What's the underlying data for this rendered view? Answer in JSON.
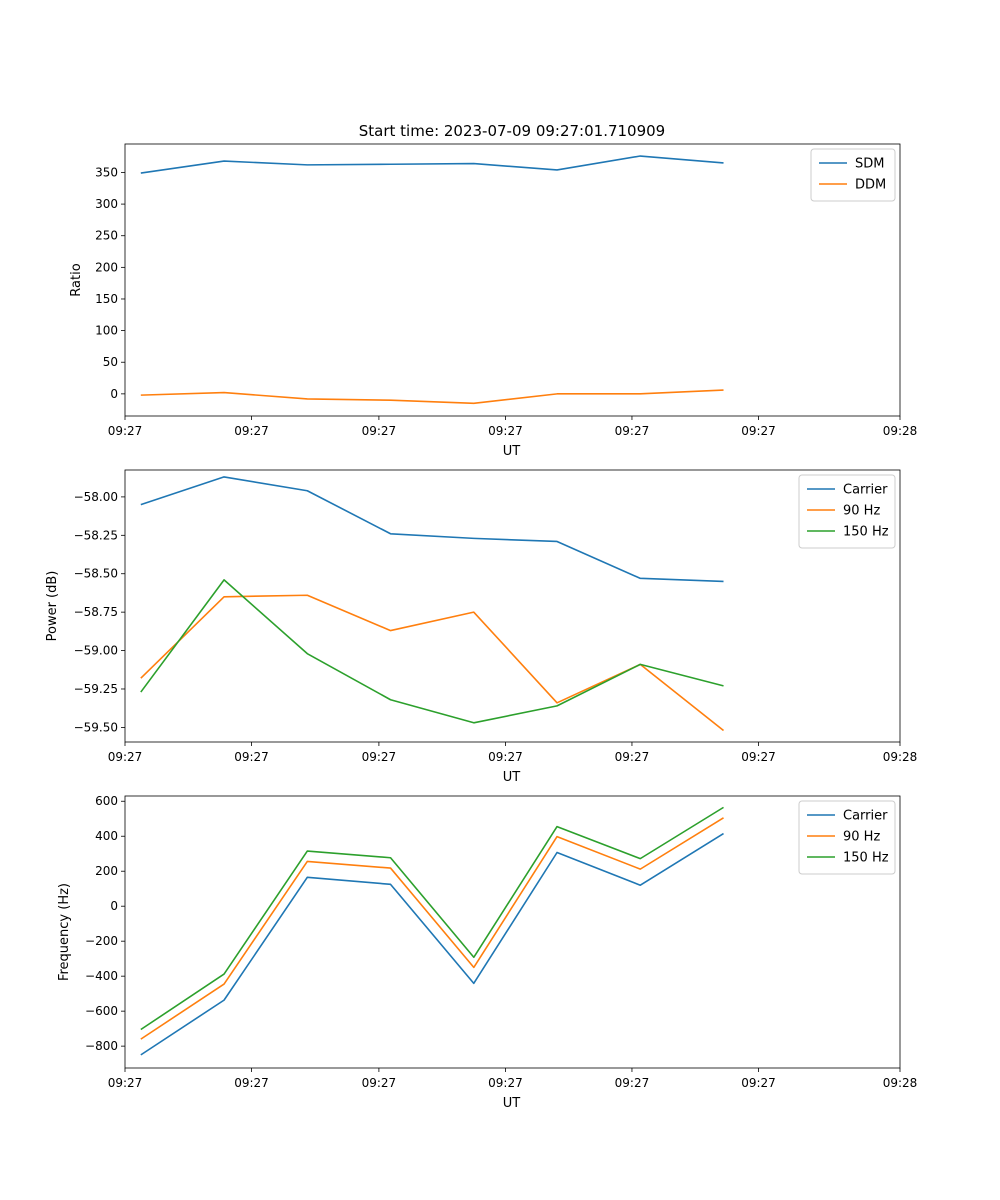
{
  "figure": {
    "title": "Start time: 2023-07-09 09:27:01.710909",
    "colors": {
      "blue": "#1f77b4",
      "orange": "#ff7f0e",
      "green": "#2ca02c",
      "axis": "#000000"
    }
  },
  "chart_data": [
    {
      "type": "line",
      "name": "ratio",
      "title": "Start time: 2023-07-09 09:27:01.710909",
      "xlabel": "UT",
      "ylabel": "Ratio",
      "x": [
        1,
        2,
        3,
        4,
        5,
        6,
        7,
        8
      ],
      "xlim": [
        0.81,
        10.12
      ],
      "xticks": [
        0.81,
        2.33,
        3.86,
        5.38,
        6.9,
        8.42,
        10.12
      ],
      "xtick_labels": [
        "09:27",
        "09:27",
        "09:27",
        "09:27",
        "09:27",
        "09:27",
        "09:28"
      ],
      "ylim": [
        -35,
        395
      ],
      "yticks": [
        0,
        50,
        100,
        150,
        200,
        250,
        300,
        350
      ],
      "ytick_labels": [
        "0",
        "50",
        "100",
        "150",
        "200",
        "250",
        "300",
        "350"
      ],
      "legend_position": "top-right",
      "series": [
        {
          "name": "SDM",
          "color": "#1f77b4",
          "values": [
            349,
            368,
            362,
            363,
            364,
            354,
            376,
            365
          ]
        },
        {
          "name": "DDM",
          "color": "#ff7f0e",
          "values": [
            -2,
            2,
            -8,
            -10,
            -15,
            0,
            0,
            6
          ]
        }
      ]
    },
    {
      "type": "line",
      "name": "power",
      "xlabel": "UT",
      "ylabel": "Power (dB)",
      "x": [
        1,
        2,
        3,
        4,
        5,
        6,
        7,
        8
      ],
      "xlim": [
        0.81,
        10.12
      ],
      "xticks": [
        0.81,
        2.33,
        3.86,
        5.38,
        6.9,
        8.42,
        10.12
      ],
      "xtick_labels": [
        "09:27",
        "09:27",
        "09:27",
        "09:27",
        "09:27",
        "09:27",
        "09:28"
      ],
      "ylim": [
        -59.595,
        -57.825
      ],
      "yticks": [
        -58.0,
        -58.25,
        -58.5,
        -58.75,
        -59.0,
        -59.25,
        -59.5
      ],
      "ytick_labels": [
        "−58.00",
        "−58.25",
        "−58.50",
        "−58.75",
        "−59.00",
        "−59.25",
        "−59.50"
      ],
      "legend_position": "top-right",
      "series": [
        {
          "name": "Carrier",
          "color": "#1f77b4",
          "values": [
            -58.05,
            -57.87,
            -57.96,
            -58.24,
            -58.27,
            -58.29,
            -58.53,
            -58.55
          ]
        },
        {
          "name": "90 Hz",
          "color": "#ff7f0e",
          "values": [
            -59.18,
            -58.65,
            -58.64,
            -58.87,
            -58.75,
            -59.34,
            -59.09,
            -59.52
          ]
        },
        {
          "name": "150 Hz",
          "color": "#2ca02c",
          "values": [
            -59.27,
            -58.54,
            -59.02,
            -59.32,
            -59.47,
            -59.36,
            -59.09,
            -59.23
          ]
        }
      ]
    },
    {
      "type": "line",
      "name": "frequency",
      "xlabel": "UT",
      "ylabel": "Frequency (Hz)",
      "x": [
        1,
        2,
        3,
        4,
        5,
        6,
        7,
        8
      ],
      "xlim": [
        0.81,
        10.12
      ],
      "xticks": [
        0.81,
        2.33,
        3.86,
        5.38,
        6.9,
        8.42,
        10.12
      ],
      "xtick_labels": [
        "09:27",
        "09:27",
        "09:27",
        "09:27",
        "09:27",
        "09:27",
        "09:28"
      ],
      "ylim": [
        -925,
        630
      ],
      "yticks": [
        600,
        400,
        200,
        0,
        -200,
        -400,
        -600,
        -800
      ],
      "ytick_labels": [
        "600",
        "400",
        "200",
        "0",
        "−200",
        "−400",
        "−600",
        "−800"
      ],
      "legend_position": "top-right",
      "series": [
        {
          "name": "Carrier",
          "color": "#1f77b4",
          "values": [
            -850,
            -537,
            165,
            125,
            -441,
            307,
            120,
            415
          ]
        },
        {
          "name": "90 Hz",
          "color": "#ff7f0e",
          "values": [
            -760,
            -445,
            256,
            218,
            -350,
            398,
            212,
            505
          ]
        },
        {
          "name": "150 Hz",
          "color": "#2ca02c",
          "values": [
            -705,
            -388,
            315,
            277,
            -292,
            455,
            272,
            565
          ]
        }
      ]
    }
  ]
}
